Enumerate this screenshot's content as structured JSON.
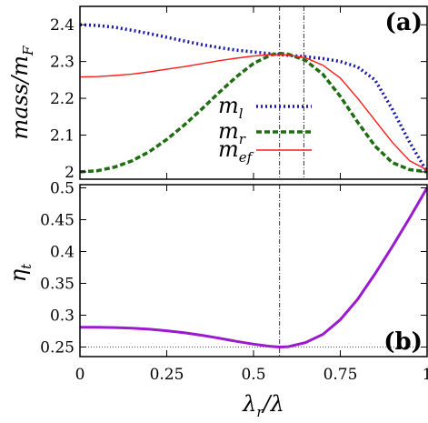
{
  "chart_data": [
    {
      "type": "line",
      "panel_label": "(a)",
      "ylabel": "mass/m_F",
      "ylabel_main": "mass/m",
      "ylabel_sub": "F",
      "xlim": [
        0,
        1
      ],
      "ylim": [
        1.98,
        2.45
      ],
      "x_ticks": [
        "0",
        "0.25",
        "0.5",
        "0.75",
        "1"
      ],
      "y_ticks": [
        {
          "value": 2.0,
          "label": "2"
        },
        {
          "value": 2.1,
          "label": "2.1"
        },
        {
          "value": 2.2,
          "label": "2.2"
        },
        {
          "value": 2.3,
          "label": "2.3"
        },
        {
          "value": 2.4,
          "label": "2.4"
        }
      ],
      "vlines": [
        0.575,
        0.645
      ],
      "legend_position": "center",
      "series": [
        {
          "name": "m_l",
          "name_main": "m",
          "name_sub": "l",
          "color": "#1a1aa6",
          "style": "dotted",
          "x": [
            0,
            0.05,
            0.1,
            0.15,
            0.2,
            0.25,
            0.3,
            0.35,
            0.4,
            0.45,
            0.5,
            0.55,
            0.6,
            0.65,
            0.7,
            0.75,
            0.8,
            0.85,
            0.9,
            0.95,
            1.0
          ],
          "y": [
            2.4,
            2.398,
            2.393,
            2.385,
            2.376,
            2.366,
            2.356,
            2.346,
            2.338,
            2.331,
            2.326,
            2.321,
            2.317,
            2.313,
            2.308,
            2.3,
            2.285,
            2.25,
            2.17,
            2.08,
            2.0
          ]
        },
        {
          "name": "m_r",
          "name_main": "m",
          "name_sub": "r",
          "color": "#1f6e12",
          "style": "dashed",
          "x": [
            0,
            0.05,
            0.1,
            0.15,
            0.2,
            0.25,
            0.3,
            0.35,
            0.4,
            0.45,
            0.5,
            0.55,
            0.575,
            0.6,
            0.65,
            0.7,
            0.75,
            0.8,
            0.85,
            0.9,
            0.95,
            1.0
          ],
          "y": [
            2.0,
            2.003,
            2.013,
            2.03,
            2.055,
            2.088,
            2.127,
            2.17,
            2.215,
            2.258,
            2.295,
            2.318,
            2.322,
            2.32,
            2.303,
            2.265,
            2.205,
            2.135,
            2.07,
            2.025,
            2.006,
            2.0
          ]
        },
        {
          "name": "m_ef",
          "name_main": "m",
          "name_sub": "ef",
          "color": "#ff1a1a",
          "style": "solid",
          "x": [
            0,
            0.05,
            0.1,
            0.15,
            0.2,
            0.25,
            0.3,
            0.35,
            0.4,
            0.45,
            0.5,
            0.55,
            0.6,
            0.65,
            0.7,
            0.75,
            0.8,
            0.85,
            0.9,
            0.95,
            1.0
          ],
          "y": [
            2.258,
            2.259,
            2.262,
            2.266,
            2.272,
            2.279,
            2.286,
            2.294,
            2.302,
            2.309,
            2.315,
            2.319,
            2.318,
            2.31,
            2.29,
            2.255,
            2.2,
            2.14,
            2.08,
            2.03,
            2.005
          ]
        }
      ]
    },
    {
      "type": "line",
      "panel_label": "(b)",
      "ylabel": "η_t",
      "ylabel_main": "η",
      "ylabel_sub": "t",
      "xlabel": "λ_r/λ",
      "xlabel_main1": "λ",
      "xlabel_sub": "r",
      "xlabel_main2": "/λ",
      "xlim": [
        0,
        1
      ],
      "ylim": [
        0.235,
        0.505
      ],
      "x_ticks": [
        "0",
        "0.25",
        "0.5",
        "0.75",
        "1"
      ],
      "y_ticks": [
        {
          "value": 0.25,
          "label": "0.25"
        },
        {
          "value": 0.3,
          "label": "0.3"
        },
        {
          "value": 0.35,
          "label": "0.35"
        },
        {
          "value": 0.4,
          "label": "0.4"
        },
        {
          "value": 0.45,
          "label": "0.45"
        },
        {
          "value": 0.5,
          "label": "0.5"
        }
      ],
      "vlines": [
        0.575
      ],
      "hlines": [
        0.25
      ],
      "series": [
        {
          "name": "",
          "color": "#9a1ad0",
          "style": "solid",
          "x": [
            0,
            0.05,
            0.1,
            0.15,
            0.2,
            0.25,
            0.3,
            0.35,
            0.4,
            0.45,
            0.5,
            0.55,
            0.575,
            0.6,
            0.65,
            0.7,
            0.75,
            0.8,
            0.85,
            0.9,
            0.95,
            1.0
          ],
          "y": [
            0.281,
            0.281,
            0.2805,
            0.2795,
            0.278,
            0.2755,
            0.2725,
            0.2685,
            0.264,
            0.259,
            0.2545,
            0.251,
            0.25,
            0.2505,
            0.257,
            0.27,
            0.293,
            0.325,
            0.365,
            0.408,
            0.453,
            0.5
          ]
        }
      ]
    }
  ]
}
